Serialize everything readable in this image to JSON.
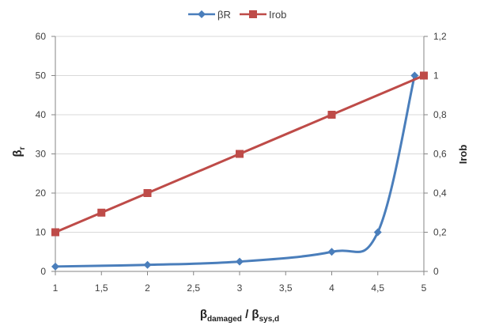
{
  "chart_data": {
    "type": "line",
    "x_axis": {
      "label_main": "β",
      "label_sub1": "damaged",
      "label_mid": " / β",
      "label_sub2": "sys,d",
      "range": [
        1,
        5
      ],
      "ticks": [
        1,
        1.5,
        2,
        2.5,
        3,
        3.5,
        4,
        4.5,
        5
      ],
      "tick_labels": [
        "1",
        "1,5",
        "2",
        "2,5",
        "3",
        "3,5",
        "4",
        "4,5",
        "5"
      ]
    },
    "y_axis_left": {
      "label_main": "β",
      "label_sub": "r",
      "range": [
        0,
        60
      ],
      "ticks": [
        0,
        10,
        20,
        30,
        40,
        50,
        60
      ],
      "tick_labels": [
        "0",
        "10",
        "20",
        "30",
        "40",
        "50",
        "60"
      ]
    },
    "y_axis_right": {
      "label": "Irob",
      "range": [
        0,
        1.2
      ],
      "ticks": [
        0,
        0.2,
        0.4,
        0.6,
        0.8,
        1.0,
        1.2
      ],
      "tick_labels": [
        "0",
        "0,2",
        "0,4",
        "0,6",
        "0,8",
        "1",
        "1,2"
      ]
    },
    "grid": "horizontal",
    "legend_position": "top-center",
    "series": [
      {
        "name": "βR",
        "axis": "left",
        "color": "#4a7ebb",
        "marker": "diamond",
        "smooth": true,
        "x": [
          1,
          2,
          3,
          4,
          4.5,
          4.9
        ],
        "y": [
          1.25,
          1.67,
          2.5,
          5,
          10,
          50
        ]
      },
      {
        "name": "Irob",
        "axis": "right",
        "color": "#be4b48",
        "marker": "square",
        "smooth": false,
        "x": [
          1,
          1.5,
          2,
          3,
          4,
          5
        ],
        "y": [
          0.2,
          0.3,
          0.4,
          0.6,
          0.8,
          1.0
        ]
      }
    ]
  }
}
